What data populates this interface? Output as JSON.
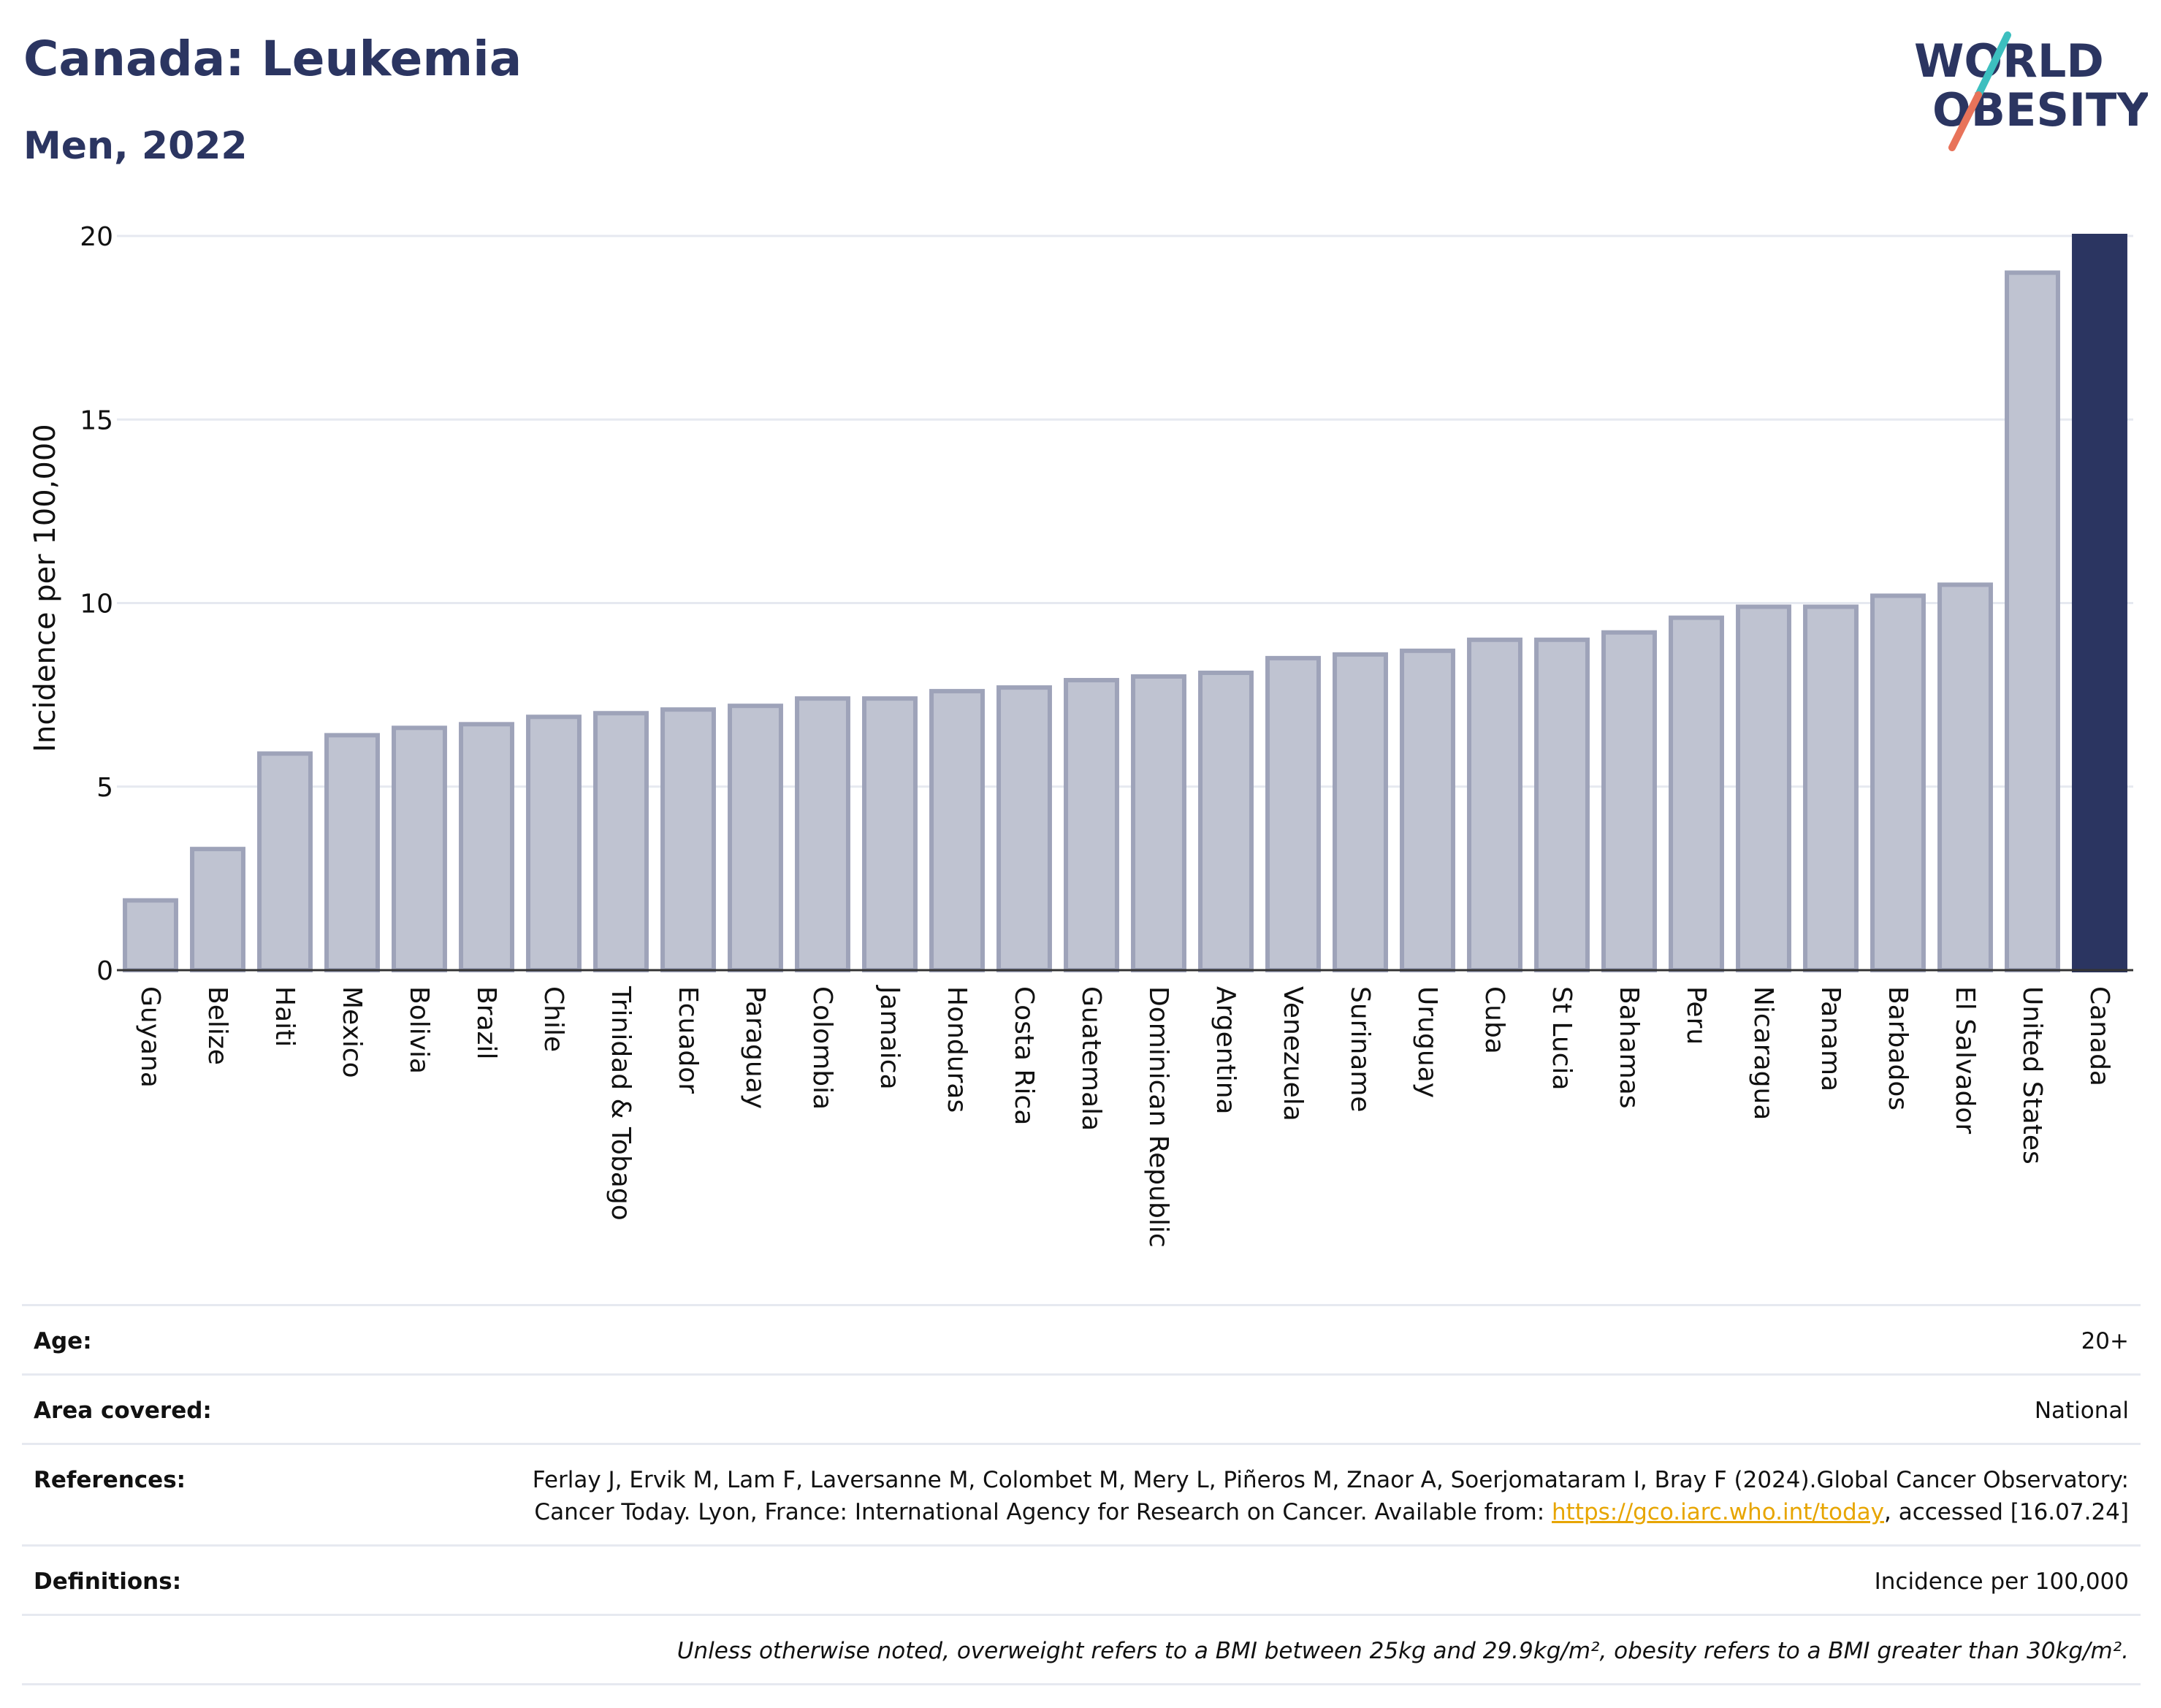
{
  "header": {
    "title": "Canada: Leukemia",
    "subtitle": "Men, 2022"
  },
  "logo": {
    "line1": "WORLD",
    "line2": "OBESITY",
    "accent_colors": [
      "#3dbfbf",
      "#e8735a"
    ]
  },
  "chart_data": {
    "type": "bar",
    "title": "Canada: Leukemia",
    "subtitle": "Men, 2022",
    "xlabel": "",
    "ylabel": "Incidence per 100,000",
    "ylim": [
      0,
      20
    ],
    "yticks": [
      0,
      5,
      10,
      15,
      20
    ],
    "grid": true,
    "categories": [
      "Guyana",
      "Belize",
      "Haiti",
      "Mexico",
      "Bolivia",
      "Brazil",
      "Chile",
      "Trinidad & Tobago",
      "Ecuador",
      "Paraguay",
      "Colombia",
      "Jamaica",
      "Honduras",
      "Costa Rica",
      "Guatemala",
      "Dominican Republic",
      "Argentina",
      "Venezuela",
      "Suriname",
      "Uruguay",
      "Cuba",
      "St Lucia",
      "Bahamas",
      "Peru",
      "Nicaragua",
      "Panama",
      "Barbados",
      "El Salvador",
      "United States",
      "Canada"
    ],
    "values": [
      1.9,
      3.3,
      5.9,
      6.4,
      6.6,
      6.7,
      6.9,
      7.0,
      7.1,
      7.2,
      7.4,
      7.4,
      7.6,
      7.7,
      7.9,
      8.0,
      8.1,
      8.5,
      8.6,
      8.7,
      9.0,
      9.0,
      9.2,
      9.6,
      9.9,
      9.9,
      10.2,
      10.5,
      19.0,
      20.0
    ],
    "highlight": "Canada",
    "colors": {
      "bar_fill": "#bfc3d1",
      "bar_stroke": "#9ea3b9",
      "highlight": "#2b3561",
      "grid": "#e6e9f0"
    }
  },
  "info": {
    "rows": [
      {
        "label": "Age:",
        "value": "20+"
      },
      {
        "label": "Area covered:",
        "value": "National"
      },
      {
        "label": "References:",
        "value_pre": "Ferlay J, Ervik M, Lam F, Laversanne M, Colombet M, Mery L, Piñeros M, Znaor A, Soerjomataram I, Bray F (2024).Global Cancer Observatory: Cancer Today. Lyon, France: International Agency for Research on Cancer. Available from: ",
        "link": "https://gco.iarc.who.int/today",
        "value_post": ", accessed [16.07.24]"
      },
      {
        "label": "Definitions:",
        "value": "Incidence per 100,000"
      },
      {
        "label": "",
        "value": "Unless otherwise noted, overweight refers to a BMI between 25kg and 29.9kg/m², obesity refers to a BMI greater than 30kg/m²."
      }
    ]
  }
}
